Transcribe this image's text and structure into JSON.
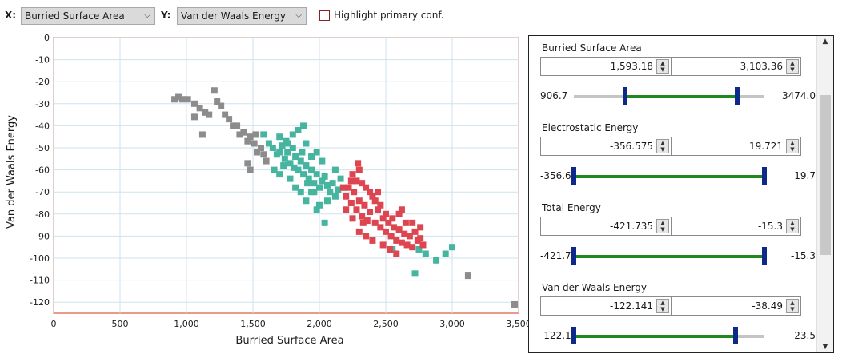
{
  "toolbar": {
    "x_label": "X:",
    "x_value": "Burried Surface Area",
    "y_label": "Y:",
    "y_value": "Van der Waals Energy",
    "highlight_label": "Highlight primary conf."
  },
  "colors": {
    "gray": "#8c8c8c",
    "teal": "#45b5a0",
    "red": "#dd4650",
    "slider_green": "#1e8a1e",
    "slider_thumb": "#0d2a8a",
    "chart_border": "#e07a5f",
    "grid": "#cfe2ec"
  },
  "panel": {
    "groups": [
      {
        "title": "Burried Surface Area",
        "min_value": "1,593.18",
        "max_value": "3,103.36",
        "range_min": "906.7",
        "range_max": "3474.0",
        "lo": 1593.18,
        "hi": 3103.36,
        "rmin": 906.7,
        "rmax": 3474.0
      },
      {
        "title": "Electrostatic Energy",
        "min_value": "-356.575",
        "max_value": "19.721",
        "range_min": "-356.6",
        "range_max": "19.7",
        "lo": -356.575,
        "hi": 19.721,
        "rmin": -356.6,
        "rmax": 19.7
      },
      {
        "title": "Total Energy",
        "min_value": "-421.735",
        "max_value": "-15.3",
        "range_min": "-421.7",
        "range_max": "-15.3",
        "lo": -421.735,
        "hi": -15.3,
        "rmin": -421.7,
        "rmax": -15.3
      },
      {
        "title": "Van der Waals Energy",
        "min_value": "-122.141",
        "max_value": "-38.49",
        "range_min": "-122.1",
        "range_max": "-23.5",
        "lo": -122.141,
        "hi": -38.49,
        "rmin": -122.1,
        "rmax": -23.5
      }
    ]
  },
  "chart_data": {
    "type": "scatter",
    "xlabel": "Burried Surface Area",
    "ylabel": "Van der Waals Energy",
    "xlim": [
      0,
      3500
    ],
    "ylim": [
      -125,
      0
    ],
    "xticks": [
      0,
      500,
      1000,
      1500,
      2000,
      2500,
      3000,
      3500
    ],
    "xtick_labels": [
      "0",
      "500",
      "1,000",
      "1,500",
      "2,000",
      "2,500",
      "3,000",
      "3,500"
    ],
    "yticks": [
      0,
      -10,
      -20,
      -30,
      -40,
      -50,
      -60,
      -70,
      -80,
      -90,
      -100,
      -110,
      -120
    ],
    "ytick_labels": [
      "0",
      "-10",
      "-20",
      "-30",
      "-40",
      "-50",
      "-60",
      "-70",
      "-80",
      "-90",
      "-100",
      "-110",
      "-120"
    ],
    "grid": true,
    "series": [
      {
        "color": "#8c8c8c",
        "points": [
          [
            910,
            -28
          ],
          [
            940,
            -27
          ],
          [
            970,
            -28
          ],
          [
            1010,
            -28
          ],
          [
            1060,
            -30
          ],
          [
            1100,
            -32
          ],
          [
            1140,
            -34
          ],
          [
            1170,
            -35
          ],
          [
            1210,
            -24
          ],
          [
            1230,
            -29
          ],
          [
            1260,
            -31
          ],
          [
            1290,
            -35
          ],
          [
            1320,
            -37
          ],
          [
            1350,
            -40
          ],
          [
            1380,
            -40
          ],
          [
            1400,
            -44
          ],
          [
            1430,
            -43
          ],
          [
            1460,
            -47
          ],
          [
            1480,
            -45
          ],
          [
            1510,
            -48
          ],
          [
            1530,
            -52
          ],
          [
            1560,
            -50
          ],
          [
            1580,
            -53
          ],
          [
            1600,
            -56
          ],
          [
            1460,
            -57
          ],
          [
            1480,
            -60
          ],
          [
            1120,
            -44
          ],
          [
            1060,
            -36
          ],
          [
            1520,
            -44
          ],
          [
            3120,
            -108
          ],
          [
            3470,
            -121
          ]
        ]
      },
      {
        "color": "#45b5a0",
        "points": [
          [
            1580,
            -44
          ],
          [
            1620,
            -48
          ],
          [
            1650,
            -50
          ],
          [
            1680,
            -53
          ],
          [
            1700,
            -45
          ],
          [
            1720,
            -49
          ],
          [
            1740,
            -55
          ],
          [
            1760,
            -52
          ],
          [
            1780,
            -57
          ],
          [
            1800,
            -50
          ],
          [
            1820,
            -54
          ],
          [
            1840,
            -60
          ],
          [
            1860,
            -56
          ],
          [
            1880,
            -62
          ],
          [
            1900,
            -58
          ],
          [
            1920,
            -64
          ],
          [
            1940,
            -60
          ],
          [
            1960,
            -66
          ],
          [
            1980,
            -62
          ],
          [
            2000,
            -68
          ],
          [
            2020,
            -65
          ],
          [
            2040,
            -63
          ],
          [
            2060,
            -67
          ],
          [
            2080,
            -70
          ],
          [
            2100,
            -66
          ],
          [
            2120,
            -72
          ],
          [
            2140,
            -69
          ],
          [
            2160,
            -64
          ],
          [
            2180,
            -68
          ],
          [
            1660,
            -60
          ],
          [
            1700,
            -62
          ],
          [
            1730,
            -58
          ],
          [
            1780,
            -64
          ],
          [
            1820,
            -68
          ],
          [
            1860,
            -70
          ],
          [
            1900,
            -74
          ],
          [
            1940,
            -70
          ],
          [
            1980,
            -78
          ],
          [
            2000,
            -76
          ],
          [
            2040,
            -84
          ],
          [
            1760,
            -48
          ],
          [
            1840,
            -42
          ],
          [
            1900,
            -48
          ],
          [
            1980,
            -52
          ],
          [
            2020,
            -56
          ],
          [
            1800,
            -44
          ],
          [
            1880,
            -40
          ],
          [
            1940,
            -54
          ],
          [
            1700,
            -52
          ],
          [
            1750,
            -47
          ],
          [
            1810,
            -59
          ],
          [
            1870,
            -52
          ],
          [
            1910,
            -66
          ],
          [
            1960,
            -70
          ],
          [
            2060,
            -74
          ],
          [
            2120,
            -60
          ],
          [
            2750,
            -96
          ],
          [
            2800,
            -98
          ],
          [
            2880,
            -101
          ],
          [
            2950,
            -98
          ],
          [
            3000,
            -95
          ],
          [
            2720,
            -107
          ],
          [
            2550,
            -96
          ]
        ]
      },
      {
        "color": "#dd4650",
        "points": [
          [
            2200,
            -72
          ],
          [
            2220,
            -68
          ],
          [
            2240,
            -75
          ],
          [
            2260,
            -70
          ],
          [
            2280,
            -78
          ],
          [
            2300,
            -74
          ],
          [
            2320,
            -81
          ],
          [
            2340,
            -76
          ],
          [
            2360,
            -83
          ],
          [
            2380,
            -79
          ],
          [
            2400,
            -72
          ],
          [
            2420,
            -84
          ],
          [
            2440,
            -78
          ],
          [
            2460,
            -86
          ],
          [
            2480,
            -82
          ],
          [
            2500,
            -88
          ],
          [
            2520,
            -84
          ],
          [
            2540,
            -90
          ],
          [
            2560,
            -86
          ],
          [
            2580,
            -92
          ],
          [
            2600,
            -87
          ],
          [
            2620,
            -93
          ],
          [
            2640,
            -89
          ],
          [
            2660,
            -94
          ],
          [
            2680,
            -90
          ],
          [
            2700,
            -95
          ],
          [
            2720,
            -88
          ],
          [
            2740,
            -92
          ],
          [
            2760,
            -91
          ],
          [
            2780,
            -94
          ],
          [
            2250,
            -62
          ],
          [
            2280,
            -65
          ],
          [
            2300,
            -60
          ],
          [
            2350,
            -68
          ],
          [
            2380,
            -70
          ],
          [
            2420,
            -74
          ],
          [
            2460,
            -76
          ],
          [
            2500,
            -80
          ],
          [
            2550,
            -82
          ],
          [
            2600,
            -80
          ],
          [
            2650,
            -84
          ],
          [
            2300,
            -88
          ],
          [
            2330,
            -84
          ],
          [
            2200,
            -78
          ],
          [
            2250,
            -82
          ],
          [
            2350,
            -90
          ],
          [
            2400,
            -92
          ],
          [
            2480,
            -94
          ],
          [
            2530,
            -96
          ],
          [
            2580,
            -98
          ],
          [
            2700,
            -84
          ],
          [
            2760,
            -86
          ],
          [
            2180,
            -68
          ],
          [
            2240,
            -65
          ],
          [
            2290,
            -57
          ],
          [
            2320,
            -66
          ],
          [
            2440,
            -70
          ],
          [
            2620,
            -78
          ]
        ]
      }
    ]
  }
}
